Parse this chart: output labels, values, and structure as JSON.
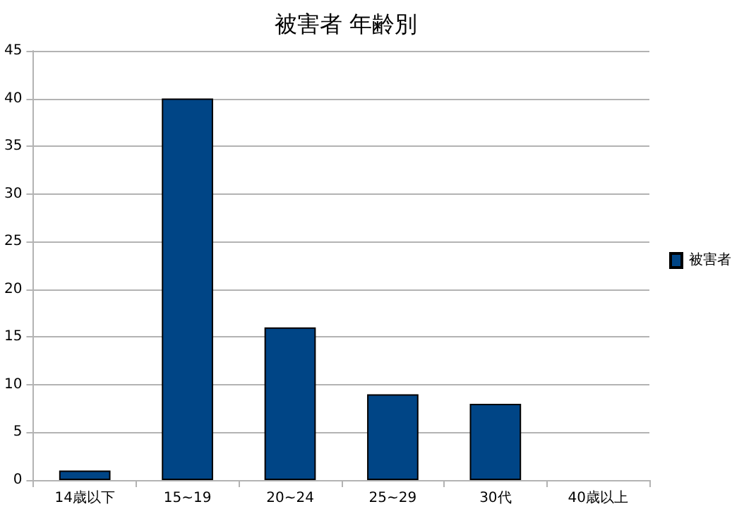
{
  "chart_data": {
    "type": "bar",
    "title": "被害者 年齢別",
    "categories": [
      "14歳以下",
      "15~19",
      "20~24",
      "25~29",
      "30代",
      "40歳以上"
    ],
    "series": [
      {
        "name": "被害者",
        "color": "#004586",
        "values": [
          1,
          40,
          16,
          9,
          8,
          null
        ]
      }
    ],
    "ylim": [
      0,
      45
    ],
    "yticks": [
      0,
      5,
      10,
      15,
      20,
      25,
      30,
      35,
      40,
      45
    ],
    "grid": "y",
    "legend": "right"
  }
}
